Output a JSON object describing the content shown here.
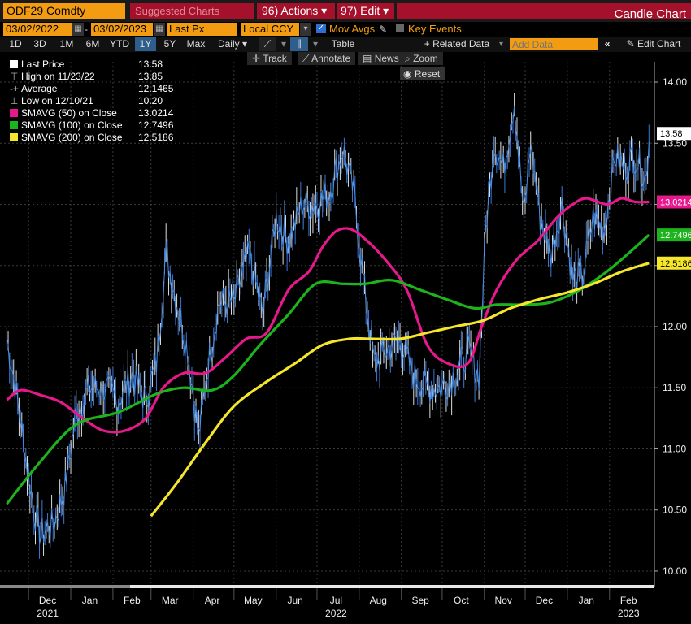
{
  "header": {
    "ticker": "ODF29 Comdty",
    "suggested_label": "Suggested Charts",
    "actions_label": "96) Actions",
    "edit_label": "97) Edit",
    "chart_title": "Candle Chart"
  },
  "controls": {
    "start_date": "03/02/2022",
    "end_date": "03/02/2023",
    "price_field": "Last Px",
    "currency": "Local CCY",
    "mov_avgs_label": "Mov Avgs",
    "key_events_label": "Key Events",
    "related_data_label": "+ Related Data",
    "add_data_placeholder": "Add Data",
    "edit_chart_label": "Edit Chart",
    "ranges": [
      "1D",
      "3D",
      "1M",
      "6M",
      "YTD",
      "1Y",
      "5Y",
      "Max"
    ],
    "period": "Daily",
    "table_label": "Table"
  },
  "tools": {
    "track": "Track",
    "annotate": "Annotate",
    "news": "News",
    "zoom": "Zoom",
    "reset": "Reset"
  },
  "legend": [
    {
      "label": "Last Price",
      "value": "13.58",
      "color": "#ffffff"
    },
    {
      "label": "High on 11/23/22",
      "value": "13.85",
      "color": "#aaaaaa"
    },
    {
      "label": "Average",
      "value": "12.1465",
      "color": "#aaaaaa"
    },
    {
      "label": "Low on 12/10/21",
      "value": "10.20",
      "color": "#aaaaaa"
    },
    {
      "label": "SMAVG (50)  on Close",
      "value": "13.0214",
      "color": "#e6198c"
    },
    {
      "label": "SMAVG (100)  on Close",
      "value": "12.7496",
      "color": "#1db31d"
    },
    {
      "label": "SMAVG (200)  on Close",
      "value": "12.5186",
      "color": "#f5e62a"
    }
  ],
  "chart_data": {
    "type": "line",
    "ylim": [
      9.9,
      14.1
    ],
    "yticks": [
      "14.00",
      "13.50",
      "13.00",
      "12.50",
      "12.00",
      "11.50",
      "11.00",
      "10.50",
      "10.00"
    ],
    "x_months": [
      {
        "label": "Dec",
        "month": "2021-12"
      },
      {
        "label": "Jan",
        "month": "2022-01"
      },
      {
        "label": "Feb",
        "month": "2022-02"
      },
      {
        "label": "Mar",
        "month": "2022-03"
      },
      {
        "label": "Apr",
        "month": "2022-04"
      },
      {
        "label": "May",
        "month": "2022-05"
      },
      {
        "label": "Jun",
        "month": "2022-06"
      },
      {
        "label": "Jul",
        "month": "2022-07"
      },
      {
        "label": "Aug",
        "month": "2022-08"
      },
      {
        "label": "Sep",
        "month": "2022-09"
      },
      {
        "label": "Oct",
        "month": "2022-10"
      },
      {
        "label": "Nov",
        "month": "2022-11"
      },
      {
        "label": "Dec",
        "month": "2022-12"
      },
      {
        "label": "Jan",
        "month": "2023-01"
      },
      {
        "label": "Feb",
        "month": "2023-02"
      }
    ],
    "x_years": [
      {
        "label": "2021",
        "month": "2021-12"
      },
      {
        "label": "2022",
        "month": "2022-07"
      },
      {
        "label": "2023",
        "month": "2023-02"
      }
    ],
    "last_labels": [
      {
        "value": "13.58",
        "y": 13.58,
        "bg": "#ffffff",
        "fg": "#000000"
      },
      {
        "value": "13.0214",
        "y": 13.02,
        "bg": "#e6198c",
        "fg": "#ffffff"
      },
      {
        "value": "12.7496",
        "y": 12.75,
        "bg": "#1db31d",
        "fg": "#ffffff"
      },
      {
        "value": "12.5186",
        "y": 12.52,
        "bg": "#f5e62a",
        "fg": "#000000"
      }
    ],
    "price": {
      "name": "Last Price",
      "color": "#4a90e2",
      "x": [
        "2021-11-15",
        "2021-11-20",
        "2021-11-28",
        "2021-12-05",
        "2021-12-10",
        "2021-12-20",
        "2021-12-28",
        "2022-01-05",
        "2022-01-15",
        "2022-01-25",
        "2022-02-05",
        "2022-02-15",
        "2022-02-25",
        "2022-03-05",
        "2022-03-12",
        "2022-03-20",
        "2022-03-28",
        "2022-04-05",
        "2022-04-12",
        "2022-04-20",
        "2022-05-01",
        "2022-05-12",
        "2022-05-22",
        "2022-06-01",
        "2022-06-10",
        "2022-06-20",
        "2022-06-30",
        "2022-07-10",
        "2022-07-20",
        "2022-07-28",
        "2022-08-05",
        "2022-08-12",
        "2022-08-20",
        "2022-08-31",
        "2022-09-10",
        "2022-09-20",
        "2022-09-30",
        "2022-10-10",
        "2022-10-20",
        "2022-10-28",
        "2022-11-02",
        "2022-11-08",
        "2022-11-15",
        "2022-11-23",
        "2022-11-30",
        "2022-12-05",
        "2022-12-12",
        "2022-12-20",
        "2022-12-28",
        "2023-01-05",
        "2023-01-12",
        "2023-01-20",
        "2023-01-28",
        "2023-02-05",
        "2023-02-12",
        "2023-02-20",
        "2023-02-28",
        "2023-03-02"
      ],
      "values": [
        11.9,
        11.6,
        11.0,
        10.5,
        10.3,
        10.4,
        10.7,
        11.3,
        11.5,
        11.5,
        11.4,
        11.6,
        11.4,
        11.7,
        12.6,
        12.2,
        11.8,
        11.1,
        11.7,
        12.2,
        12.2,
        12.6,
        12.1,
        12.9,
        12.7,
        13.0,
        13.0,
        13.1,
        13.45,
        13.1,
        12.3,
        11.7,
        11.8,
        11.9,
        11.6,
        11.5,
        11.5,
        11.6,
        11.8,
        11.6,
        12.8,
        13.5,
        13.3,
        13.85,
        12.9,
        13.5,
        12.9,
        12.6,
        13.0,
        12.4,
        12.4,
        12.9,
        12.8,
        13.4,
        13.3,
        13.4,
        13.2,
        13.58
      ]
    },
    "series": [
      {
        "name": "SMAVG (50)  on Close",
        "color": "#e6198c",
        "x": [
          "2021-11-15",
          "2021-11-25",
          "2021-12-10",
          "2021-12-25",
          "2022-01-10",
          "2022-01-25",
          "2022-02-10",
          "2022-02-25",
          "2022-03-10",
          "2022-03-25",
          "2022-04-10",
          "2022-04-25",
          "2022-05-10",
          "2022-05-25",
          "2022-06-10",
          "2022-06-25",
          "2022-07-05",
          "2022-07-15",
          "2022-07-25",
          "2022-08-05",
          "2022-08-20",
          "2022-09-05",
          "2022-09-20",
          "2022-10-05",
          "2022-10-20",
          "2022-10-30",
          "2022-11-10",
          "2022-11-25",
          "2022-12-10",
          "2022-12-25",
          "2023-01-05",
          "2023-01-15",
          "2023-01-30",
          "2023-02-10",
          "2023-02-20",
          "2023-03-02"
        ],
        "values": [
          11.4,
          11.48,
          11.44,
          11.38,
          11.25,
          11.15,
          11.15,
          11.25,
          11.5,
          11.62,
          11.62,
          11.75,
          11.9,
          11.95,
          12.3,
          12.45,
          12.65,
          12.78,
          12.8,
          12.72,
          12.55,
          12.3,
          11.85,
          11.7,
          11.7,
          12.0,
          12.3,
          12.55,
          12.7,
          12.9,
          13.0,
          13.05,
          13.0,
          13.05,
          13.02,
          13.02
        ]
      },
      {
        "name": "SMAVG (100)  on Close",
        "color": "#1db31d",
        "x": [
          "2021-11-15",
          "2021-12-10",
          "2022-01-05",
          "2022-02-05",
          "2022-03-05",
          "2022-03-25",
          "2022-04-15",
          "2022-05-01",
          "2022-05-20",
          "2022-06-10",
          "2022-06-30",
          "2022-07-20",
          "2022-08-05",
          "2022-08-25",
          "2022-09-15",
          "2022-10-05",
          "2022-10-25",
          "2022-11-10",
          "2022-11-30",
          "2022-12-20",
          "2023-01-10",
          "2023-01-30",
          "2023-02-15",
          "2023-03-02"
        ],
        "values": [
          10.55,
          10.9,
          11.2,
          11.3,
          11.45,
          11.5,
          11.48,
          11.6,
          11.85,
          12.1,
          12.35,
          12.35,
          12.35,
          12.38,
          12.3,
          12.22,
          12.15,
          12.18,
          12.18,
          12.2,
          12.3,
          12.45,
          12.6,
          12.75
        ]
      },
      {
        "name": "SMAVG (200)  on Close",
        "color": "#f5e62a",
        "x": [
          "2022-03-01",
          "2022-03-20",
          "2022-04-10",
          "2022-05-01",
          "2022-05-25",
          "2022-06-15",
          "2022-07-05",
          "2022-07-25",
          "2022-08-10",
          "2022-08-31",
          "2022-09-20",
          "2022-10-10",
          "2022-10-31",
          "2022-11-20",
          "2022-12-10",
          "2023-01-01",
          "2023-01-20",
          "2023-02-10",
          "2023-03-02"
        ],
        "values": [
          10.45,
          10.72,
          11.05,
          11.35,
          11.55,
          11.7,
          11.85,
          11.9,
          11.9,
          11.9,
          11.95,
          12.0,
          12.05,
          12.15,
          12.22,
          12.28,
          12.35,
          12.45,
          12.52
        ]
      }
    ]
  }
}
